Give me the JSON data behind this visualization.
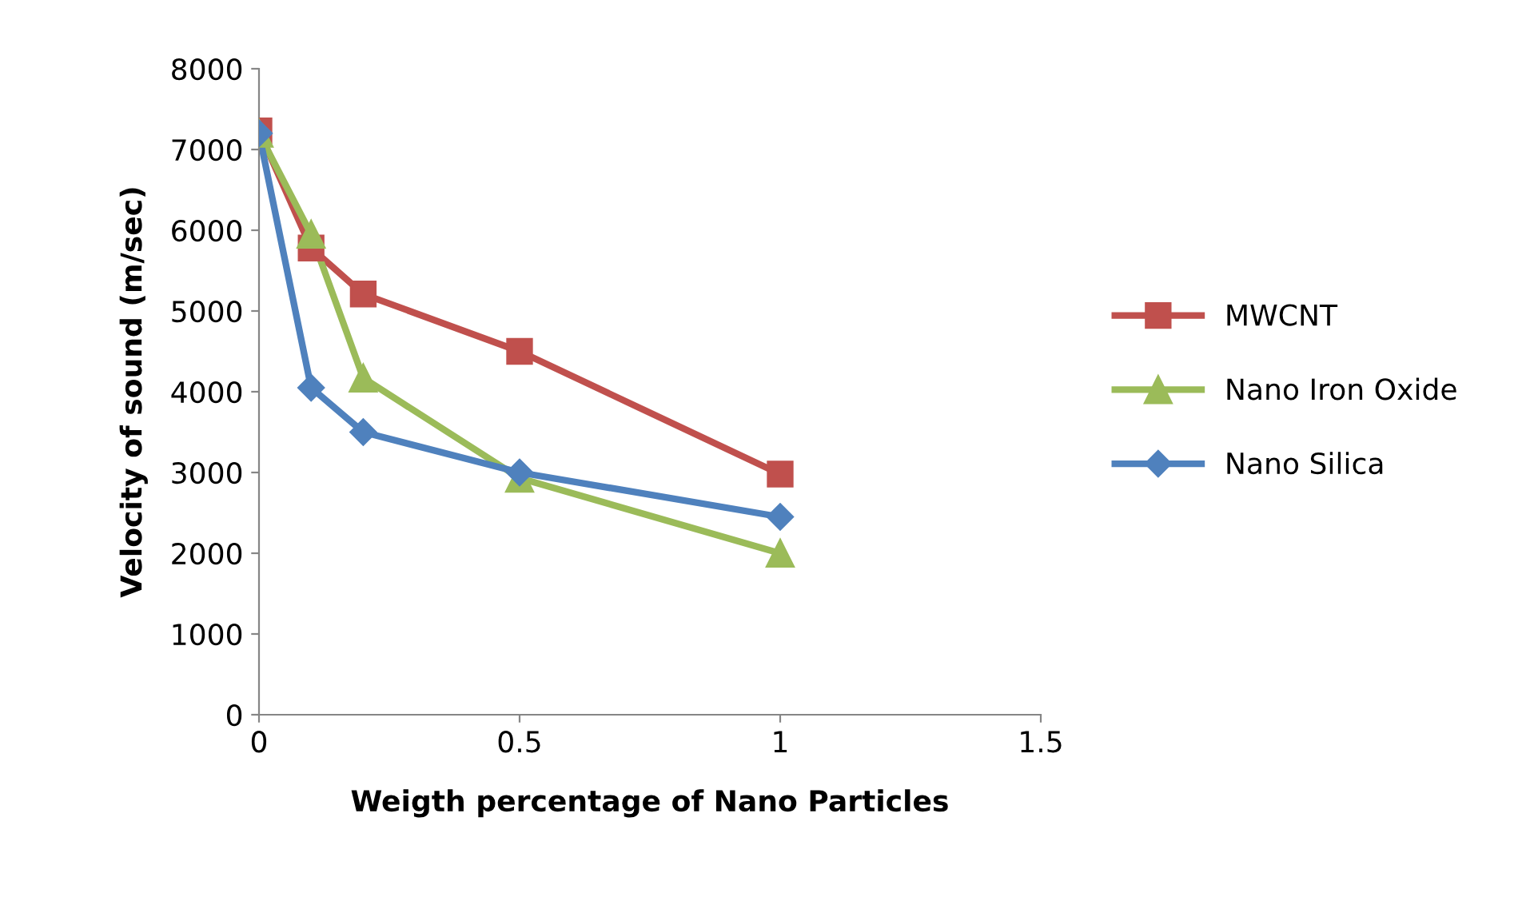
{
  "chart_data": {
    "type": "line",
    "xlabel": "Weigth percentage of Nano Particles",
    "ylabel": "Velocity of sound (m/sec)",
    "xlim": [
      0,
      1.5
    ],
    "xticks": [
      0,
      0.5,
      1,
      1.5
    ],
    "ylim": [
      0,
      8000
    ],
    "yticks": [
      0,
      1000,
      2000,
      3000,
      4000,
      5000,
      6000,
      7000,
      8000
    ],
    "grid": false,
    "legend": "right",
    "line_style": "solid",
    "series": [
      {
        "name": "MWCNT",
        "color": "#c0504d",
        "marker": "square",
        "x": [
          0,
          0.1,
          0.2,
          0.5,
          1
        ],
        "values": [
          7230,
          5780,
          5210,
          4500,
          2980
        ]
      },
      {
        "name": "Nano Iron Oxide",
        "color": "#9bbb59",
        "marker": "triangle",
        "x": [
          0,
          0.1,
          0.2,
          0.5,
          1
        ],
        "values": [
          7200,
          5950,
          4170,
          2930,
          2000
        ]
      },
      {
        "name": "Nano Silica",
        "color": "#4f81bd",
        "marker": "diamond",
        "x": [
          0,
          0.1,
          0.2,
          0.5,
          1
        ],
        "values": [
          7200,
          4050,
          3500,
          3000,
          2450
        ]
      }
    ]
  }
}
